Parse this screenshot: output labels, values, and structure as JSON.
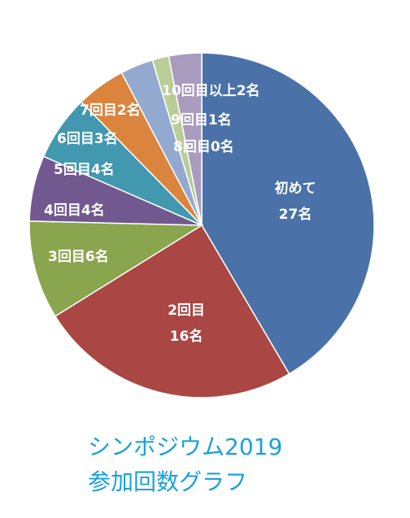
{
  "chart_data": {
    "type": "pie",
    "title": [
      "シンポジウム2019",
      "参加回数グラフ"
    ],
    "categories": [
      "初めて",
      "2回目",
      "3回目",
      "4回目",
      "5回目",
      "6回目",
      "7回目",
      "8回目",
      "9回目",
      "10回目以上"
    ],
    "values": [
      27,
      16,
      6,
      4,
      4,
      3,
      2,
      0,
      1,
      2
    ],
    "value_labels": [
      "27名",
      "16名",
      "6名",
      "4名",
      "4名",
      "3名",
      "2名",
      "0名",
      "1名",
      "2名"
    ],
    "colors": [
      "#4a72a8",
      "#aa4643",
      "#89a54e",
      "#71588f",
      "#4198af",
      "#db843d",
      "#93a9cf",
      "#a47d7c",
      "#b9cd96",
      "#a99bbd"
    ],
    "title_color": "#1aa1dc"
  }
}
